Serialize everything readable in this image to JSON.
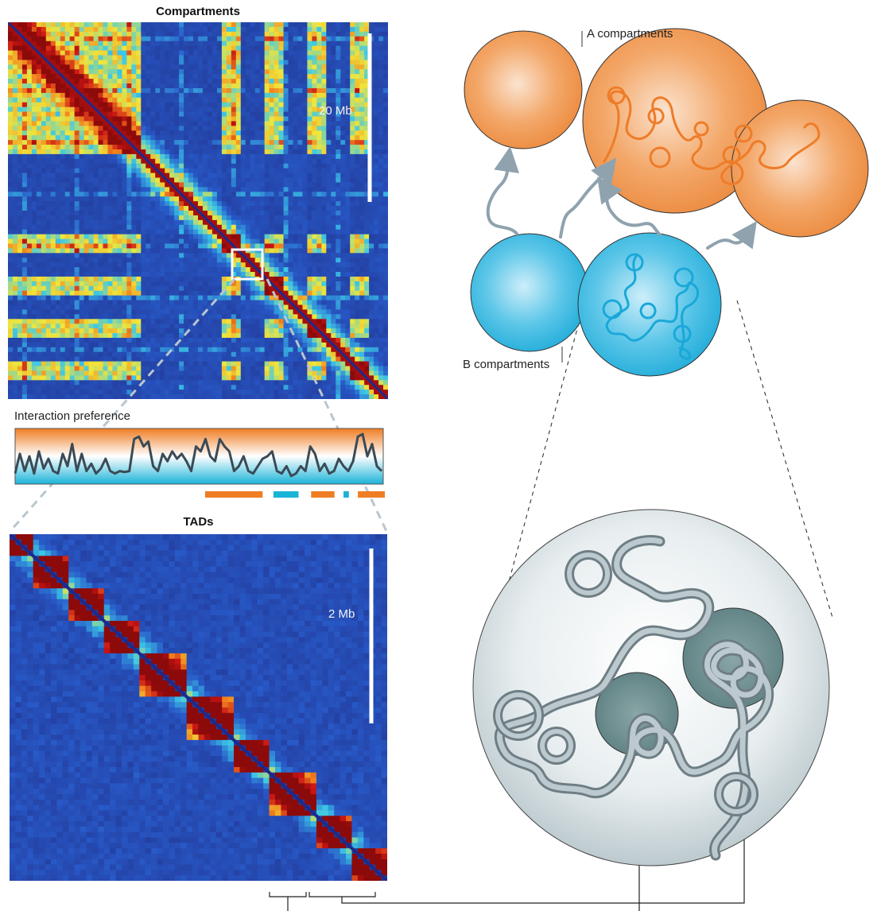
{
  "compartments_panel": {
    "title": "Compartments",
    "scale_label": "20 Mb"
  },
  "interaction_preference": {
    "label": "Interaction preference",
    "track_values": [
      0.15,
      0.55,
      0.2,
      0.5,
      0.15,
      0.6,
      0.25,
      0.45,
      0.2,
      0.15,
      0.55,
      0.3,
      0.75,
      0.2,
      0.55,
      0.2,
      0.35,
      0.15,
      0.25,
      0.45,
      0.2,
      0.15,
      0.2,
      0.18,
      0.2,
      0.85,
      0.9,
      0.7,
      0.8,
      0.3,
      0.2,
      0.55,
      0.4,
      0.6,
      0.45,
      0.55,
      0.4,
      0.2,
      0.7,
      0.6,
      0.85,
      0.5,
      0.4,
      0.85,
      0.7,
      0.6,
      0.2,
      0.3,
      0.5,
      0.2,
      0.15,
      0.3,
      0.45,
      0.5,
      0.6,
      0.2,
      0.15,
      0.3,
      0.1,
      0.15,
      0.3,
      0.2,
      0.7,
      0.55,
      0.2,
      0.35,
      0.15,
      0.2,
      0.45,
      0.3,
      0.2,
      0.4,
      0.9,
      0.95,
      0.5,
      0.75,
      0.3,
      0.2
    ],
    "compartment_bar": [
      {
        "type": "A",
        "color": "#ef7d23",
        "start": 0.0,
        "end": 0.32
      },
      {
        "type": "B",
        "color": "#1ab3d8",
        "start": 0.38,
        "end": 0.52
      },
      {
        "type": "A",
        "color": "#ef7d23",
        "start": 0.59,
        "end": 0.72
      },
      {
        "type": "B",
        "color": "#1ab3d8",
        "start": 0.77,
        "end": 0.8
      },
      {
        "type": "A",
        "color": "#ef7d23",
        "start": 0.85,
        "end": 1.0
      }
    ]
  },
  "tads_panel": {
    "title": "TADs",
    "scale_label": "2 Mb"
  },
  "compartment_diagram": {
    "label_a": "A compartments",
    "label_b": "B compartments",
    "color_a": "#ef8a3c",
    "color_b": "#2cb5df"
  },
  "tad_diagram": {
    "sphere_color": "#e4eaec",
    "domain_color": "#5a7e80"
  }
}
